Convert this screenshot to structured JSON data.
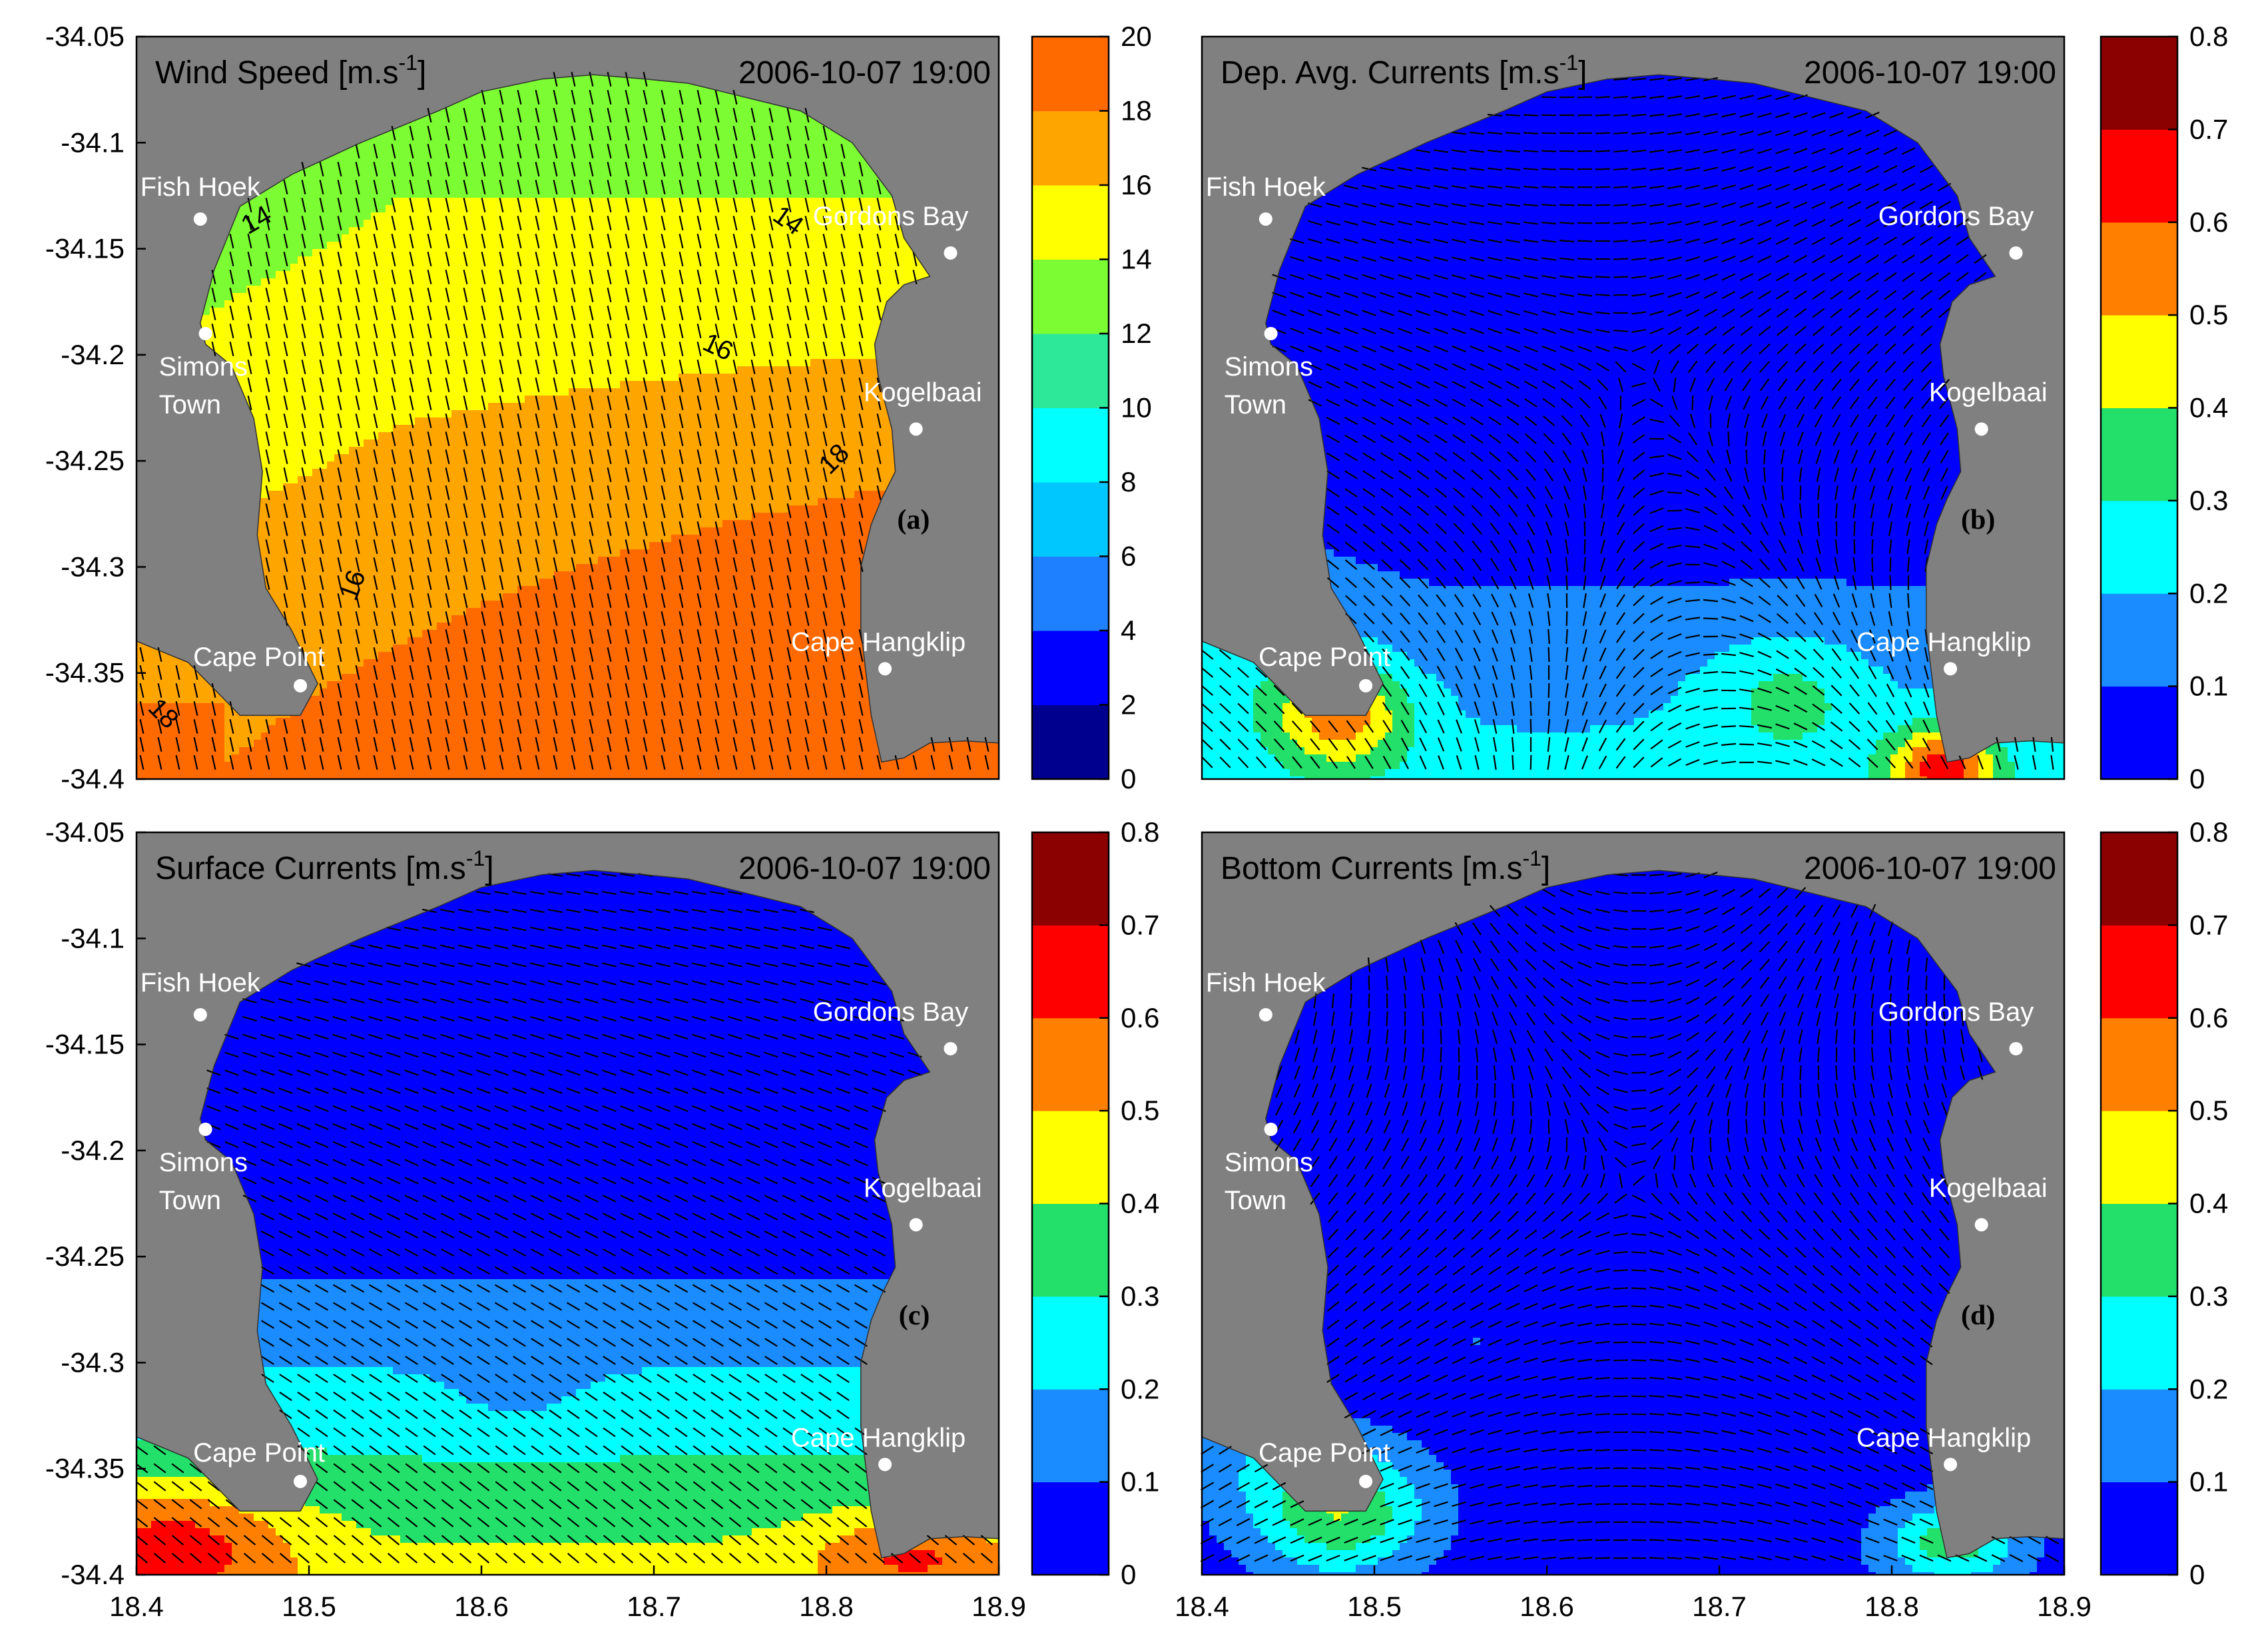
{
  "panels_text": {
    "a": {
      "title_main": "Wind Speed [m.s",
      "title_sup": "-1",
      "title_end": "]",
      "timestamp": "2006-10-07 19:00",
      "label": "(a)"
    },
    "b": {
      "title_main": "Dep. Avg. Currents [m.s",
      "title_sup": "-1",
      "title_end": "]",
      "timestamp": "2006-10-07 19:00",
      "label": "(b)"
    },
    "c": {
      "title_main": "Surface Currents [m.s",
      "title_sup": "-1",
      "title_end": "]",
      "timestamp": "2006-10-07 19:00",
      "label": "(c)"
    },
    "d": {
      "title_main": "Bottom Currents [m.s",
      "title_sup": "-1",
      "title_end": "]",
      "timestamp": "2006-10-07 19:00",
      "label": "(d)"
    }
  },
  "places": [
    {
      "name": "Fish Hoek",
      "lon": 18.437,
      "lat": -34.136
    },
    {
      "name": "Gordons Bay",
      "lon": 18.872,
      "lat": -34.152
    },
    {
      "name": "Simons",
      "name2": "Town",
      "lon": 18.44,
      "lat": -34.19
    },
    {
      "name": "Kogelbaai",
      "lon": 18.852,
      "lat": -34.235
    },
    {
      "name": "Cape Point",
      "lon": 18.495,
      "lat": -34.356
    },
    {
      "name": "Cape Hangklip",
      "lon": 18.834,
      "lat": -34.348
    }
  ],
  "contour_labels_a": [
    "14",
    "14",
    "16",
    "16",
    "18",
    "18"
  ],
  "colors": {
    "land": "#808080",
    "wind_scale": [
      "#00008f",
      "#0000ff",
      "#1e7fff",
      "#00c8ff",
      "#00ffff",
      "#2ee89a",
      "#7cfc32",
      "#ffff00",
      "#ffa500",
      "#ff6a00"
    ],
    "current_scale": [
      "#0000ff",
      "#1a8cff",
      "#00ffff",
      "#22e06a",
      "#ffff00",
      "#ff8000",
      "#ff0000",
      "#8b0000"
    ]
  },
  "chart_data": [
    {
      "type": "heatmap",
      "panel": "a",
      "title": "Wind Speed [m.s-1]",
      "timestamp": "2006-10-07 19:00",
      "xlim": [
        18.4,
        18.9
      ],
      "ylim": [
        -34.4,
        -34.05
      ],
      "yticks": [
        "-34.05",
        "-34.1",
        "-34.15",
        "-34.2",
        "-34.25",
        "-34.3",
        "-34.35",
        "-34.4"
      ],
      "colorbar": {
        "ticks": [
          "0",
          "2",
          "4",
          "6",
          "8",
          "10",
          "12",
          "14",
          "16",
          "18",
          "20"
        ],
        "range": [
          0,
          20
        ]
      },
      "contour_levels": [
        14,
        16,
        18
      ],
      "field": {
        "kind": "wind",
        "description_values": {
          "north_min": 13,
          "southeast_max": 19
        }
      },
      "vectors": {
        "direction": "south-southeast"
      }
    },
    {
      "type": "heatmap",
      "panel": "b",
      "title": "Dep. Avg. Currents [m.s-1]",
      "timestamp": "2006-10-07 19:00",
      "xlim": [
        18.4,
        18.9
      ],
      "ylim": [
        -34.4,
        -34.05
      ],
      "colorbar": {
        "ticks": [
          "0",
          "0.1",
          "0.2",
          "0.3",
          "0.4",
          "0.5",
          "0.6",
          "0.7",
          "0.8"
        ],
        "range": [
          0,
          0.8
        ]
      },
      "field": {
        "kind": "depth_avg"
      }
    },
    {
      "type": "heatmap",
      "panel": "c",
      "title": "Surface Currents [m.s-1]",
      "timestamp": "2006-10-07 19:00",
      "xlim": [
        18.4,
        18.9
      ],
      "ylim": [
        -34.4,
        -34.05
      ],
      "xticks": [
        "18.4",
        "18.5",
        "18.6",
        "18.7",
        "18.8",
        "18.9"
      ],
      "yticks": [
        "-34.05",
        "-34.1",
        "-34.15",
        "-34.2",
        "-34.25",
        "-34.3",
        "-34.35",
        "-34.4"
      ],
      "colorbar": {
        "ticks": [
          "0",
          "0.1",
          "0.2",
          "0.3",
          "0.4",
          "0.5",
          "0.6",
          "0.7",
          "0.8"
        ],
        "range": [
          0,
          0.8
        ]
      },
      "field": {
        "kind": "surface"
      }
    },
    {
      "type": "heatmap",
      "panel": "d",
      "title": "Bottom Currents [m.s-1]",
      "timestamp": "2006-10-07 19:00",
      "xlim": [
        18.4,
        18.9
      ],
      "ylim": [
        -34.4,
        -34.05
      ],
      "xticks": [
        "18.4",
        "18.5",
        "18.6",
        "18.7",
        "18.8",
        "18.9"
      ],
      "colorbar": {
        "ticks": [
          "0",
          "0.1",
          "0.2",
          "0.3",
          "0.4",
          "0.5",
          "0.6",
          "0.7",
          "0.8"
        ],
        "range": [
          0,
          0.8
        ]
      },
      "field": {
        "kind": "bottom"
      }
    }
  ]
}
